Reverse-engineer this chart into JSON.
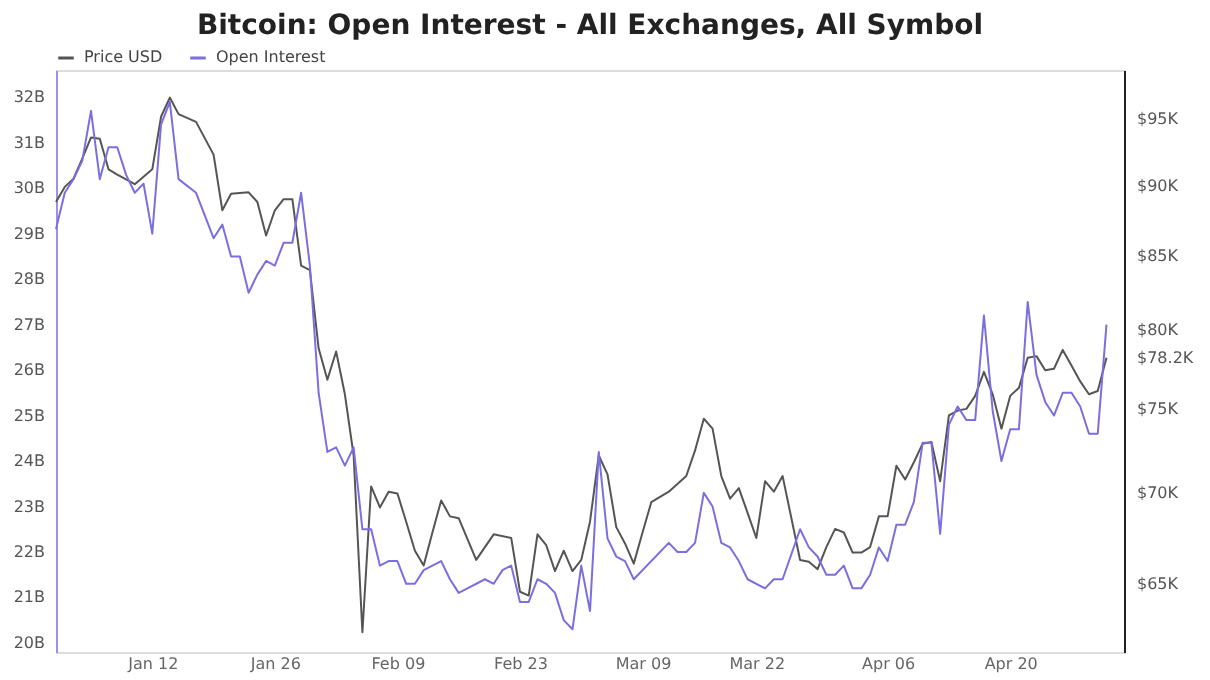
{
  "chart_data": {
    "type": "line",
    "title": "Bitcoin: Open Interest - All Exchanges, All Symbol",
    "legend": "top",
    "grid": false,
    "log": "y2",
    "xlim": [
      "--01-01",
      "--05-03"
    ],
    "xticks": [
      {
        "value": "--01-12",
        "label": "Jan 12"
      },
      {
        "value": "--01-26",
        "label": "Jan 26"
      },
      {
        "value": "--02-09",
        "label": "Feb 09"
      },
      {
        "value": "--02-23",
        "label": "Feb 23"
      },
      {
        "value": "--03-09",
        "label": "Mar 09"
      },
      {
        "value": "--03-22",
        "label": "Mar 22"
      },
      {
        "value": "--04-06",
        "label": "Apr 06"
      },
      {
        "value": "--04-20",
        "label": "Apr 20"
      }
    ],
    "ylim": [
      19.8,
      32.6
    ],
    "yticks": [
      {
        "value": 20,
        "label": "20B"
      },
      {
        "value": 21,
        "label": "21B"
      },
      {
        "value": 22,
        "label": "22B"
      },
      {
        "value": 23,
        "label": "23B"
      },
      {
        "value": 24,
        "label": "24B"
      },
      {
        "value": 25,
        "label": "25B"
      },
      {
        "value": 26,
        "label": "26B"
      },
      {
        "value": 27,
        "label": "27B"
      },
      {
        "value": 28,
        "label": "28B"
      },
      {
        "value": 29,
        "label": "29B"
      },
      {
        "value": 30,
        "label": "30B"
      },
      {
        "value": 31,
        "label": "31B"
      },
      {
        "value": 32,
        "label": "32B"
      }
    ],
    "y2lim": [
      61.5,
      98.9
    ],
    "y2ticks": [
      {
        "value": 65,
        "label": "$65K"
      },
      {
        "value": 70,
        "label": "$70K"
      },
      {
        "value": 75,
        "label": "$75K"
      },
      {
        "value": 78.2,
        "label": "$78.2K"
      },
      {
        "value": 80,
        "label": "$80K"
      },
      {
        "value": 85,
        "label": "$85K"
      },
      {
        "value": 90,
        "label": "$90K"
      },
      {
        "value": 95,
        "label": "$95K"
      }
    ],
    "series": [
      {
        "name": "Price USD",
        "color": "#555555",
        "axis": "y2",
        "x": [
          "--01-01",
          "--01-02",
          "--01-03",
          "--01-04",
          "--01-05",
          "--01-06",
          "--01-07",
          "--01-08",
          "--01-10",
          "--01-12",
          "--01-13",
          "--01-14",
          "--01-15",
          "--01-17",
          "--01-19",
          "--01-20",
          "--01-21",
          "--01-23",
          "--01-24",
          "--01-25",
          "--01-26",
          "--01-27",
          "--01-28",
          "--01-29",
          "--01-30",
          "--01-31",
          "--02-01",
          "--02-02",
          "--02-03",
          "--02-04",
          "--02-05",
          "--02-06",
          "--02-07",
          "--02-08",
          "--02-09",
          "--02-10",
          "--02-11",
          "--02-12",
          "--02-13",
          "--02-14",
          "--02-15",
          "--02-16",
          "--02-18",
          "--02-20",
          "--02-22",
          "--02-23",
          "--02-24",
          "--02-25",
          "--02-26",
          "--02-27",
          "--02-28",
          "--03-01",
          "--03-02",
          "--03-03",
          "--03-04",
          "--03-05",
          "--03-06",
          "--03-07",
          "--03-08",
          "--03-09",
          "--03-10",
          "--03-12",
          "--03-14",
          "--03-15",
          "--03-16",
          "--03-17",
          "--03-18",
          "--03-19",
          "--03-20",
          "--03-21",
          "--03-22",
          "--03-23",
          "--03-24",
          "--03-25",
          "--03-27",
          "--03-28",
          "--03-29",
          "--03-30",
          "--03-31",
          "--04-01",
          "--04-02",
          "--04-03",
          "--04-04",
          "--04-05",
          "--04-06",
          "--04-07",
          "--04-08",
          "--04-09",
          "--04-10",
          "--04-11",
          "--04-12",
          "--04-13",
          "--04-14",
          "--04-15",
          "--04-16",
          "--04-17",
          "--04-18",
          "--04-19",
          "--04-20",
          "--04-21",
          "--04-22",
          "--04-23",
          "--04-24",
          "--04-25",
          "--04-26",
          "--04-27",
          "--04-28",
          "--04-29",
          "--04-30",
          "--05-01"
        ],
        "values": [
          88.8,
          89.9,
          90.5,
          92.0,
          93.6,
          93.5,
          91.2,
          90.8,
          90.1,
          91.2,
          95.2,
          96.7,
          95.4,
          94.8,
          92.3,
          88.2,
          89.4,
          89.5,
          88.8,
          86.4,
          88.2,
          89.0,
          89.0,
          84.3,
          84.0,
          78.8,
          76.8,
          78.6,
          75.9,
          72.2,
          62.5,
          70.4,
          69.2,
          70.1,
          70.0,
          68.4,
          66.8,
          66.0,
          67.8,
          69.6,
          68.7,
          68.6,
          66.3,
          67.7,
          67.5,
          64.6,
          64.4,
          67.7,
          67.1,
          65.7,
          66.8,
          65.7,
          66.3,
          68.4,
          72.2,
          71.1,
          68.1,
          67.2,
          66.1,
          67.8,
          69.5,
          70.1,
          71.0,
          72.5,
          74.4,
          73.8,
          71.0,
          69.7,
          70.3,
          68.9,
          67.5,
          70.7,
          70.1,
          71.0,
          66.3,
          66.2,
          65.8,
          67.0,
          68.0,
          67.8,
          66.7,
          66.7,
          67.0,
          68.7,
          68.7,
          71.6,
          70.8,
          71.8,
          72.9,
          73.0,
          70.7,
          74.6,
          74.9,
          75.0,
          75.8,
          77.3,
          75.9,
          73.8,
          75.8,
          76.3,
          78.2,
          78.3,
          77.4,
          77.5,
          78.7,
          77.7,
          76.7,
          75.9,
          76.1,
          78.2
        ]
      },
      {
        "name": "Open Interest",
        "color": "#7b6ee0",
        "x": [
          "--01-01",
          "--01-02",
          "--01-03",
          "--01-04",
          "--01-05",
          "--01-06",
          "--01-07",
          "--01-08",
          "--01-09",
          "--01-10",
          "--01-11",
          "--01-12",
          "--01-13",
          "--01-14",
          "--01-15",
          "--01-17",
          "--01-19",
          "--01-20",
          "--01-21",
          "--01-22",
          "--01-23",
          "--01-24",
          "--01-25",
          "--01-26",
          "--01-27",
          "--01-28",
          "--01-29",
          "--01-30",
          "--01-31",
          "--02-01",
          "--02-02",
          "--02-03",
          "--02-04",
          "--02-05",
          "--02-06",
          "--02-07",
          "--02-08",
          "--02-09",
          "--02-10",
          "--02-11",
          "--02-12",
          "--02-14",
          "--02-15",
          "--02-16",
          "--02-17",
          "--02-19",
          "--02-20",
          "--02-21",
          "--02-22",
          "--02-23",
          "--02-24",
          "--02-25",
          "--02-26",
          "--02-27",
          "--02-28",
          "--03-01",
          "--03-02",
          "--03-03",
          "--03-04",
          "--03-05",
          "--03-06",
          "--03-07",
          "--03-08",
          "--03-12",
          "--03-13",
          "--03-14",
          "--03-15",
          "--03-16",
          "--03-17",
          "--03-18",
          "--03-19",
          "--03-20",
          "--03-21",
          "--03-23",
          "--03-24",
          "--03-25",
          "--03-27",
          "--03-28",
          "--03-29",
          "--03-30",
          "--03-31",
          "--04-01",
          "--04-02",
          "--04-03",
          "--04-04",
          "--04-05",
          "--04-06",
          "--04-07",
          "--04-08",
          "--04-09",
          "--04-10",
          "--04-11",
          "--04-12",
          "--04-13",
          "--04-14",
          "--04-15",
          "--04-16",
          "--04-17",
          "--04-18",
          "--04-19",
          "--04-20",
          "--04-21",
          "--04-22",
          "--04-23",
          "--04-24",
          "--04-25",
          "--04-26",
          "--04-27",
          "--04-28",
          "--04-29",
          "--04-30",
          "--05-01"
        ],
        "values": [
          29.1,
          29.9,
          30.2,
          30.6,
          31.7,
          30.2,
          30.9,
          30.9,
          30.3,
          29.9,
          30.1,
          29.0,
          31.4,
          31.9,
          30.2,
          29.9,
          28.9,
          29.2,
          28.5,
          28.5,
          27.7,
          28.1,
          28.4,
          28.3,
          28.8,
          28.8,
          29.9,
          28.3,
          25.5,
          24.2,
          24.3,
          23.9,
          24.3,
          22.5,
          22.5,
          21.7,
          21.8,
          21.8,
          21.3,
          21.3,
          21.6,
          21.8,
          21.4,
          21.1,
          21.2,
          21.4,
          21.3,
          21.6,
          21.7,
          20.9,
          20.9,
          21.4,
          21.3,
          21.1,
          20.5,
          20.3,
          21.7,
          20.7,
          24.2,
          22.3,
          21.9,
          21.8,
          21.4,
          22.2,
          22.0,
          22.0,
          22.2,
          23.3,
          23.0,
          22.2,
          22.1,
          21.8,
          21.4,
          21.2,
          21.4,
          21.4,
          22.5,
          22.1,
          21.9,
          21.5,
          21.5,
          21.7,
          21.2,
          21.2,
          21.5,
          22.1,
          21.8,
          22.6,
          22.6,
          23.1,
          24.4,
          24.4,
          22.4,
          24.8,
          25.2,
          24.9,
          24.9,
          27.2,
          25.1,
          24.0,
          24.7,
          24.7,
          27.5,
          25.9,
          25.3,
          25.0,
          25.5,
          25.5,
          25.2,
          24.6,
          24.6,
          27.0
        ]
      }
    ]
  }
}
